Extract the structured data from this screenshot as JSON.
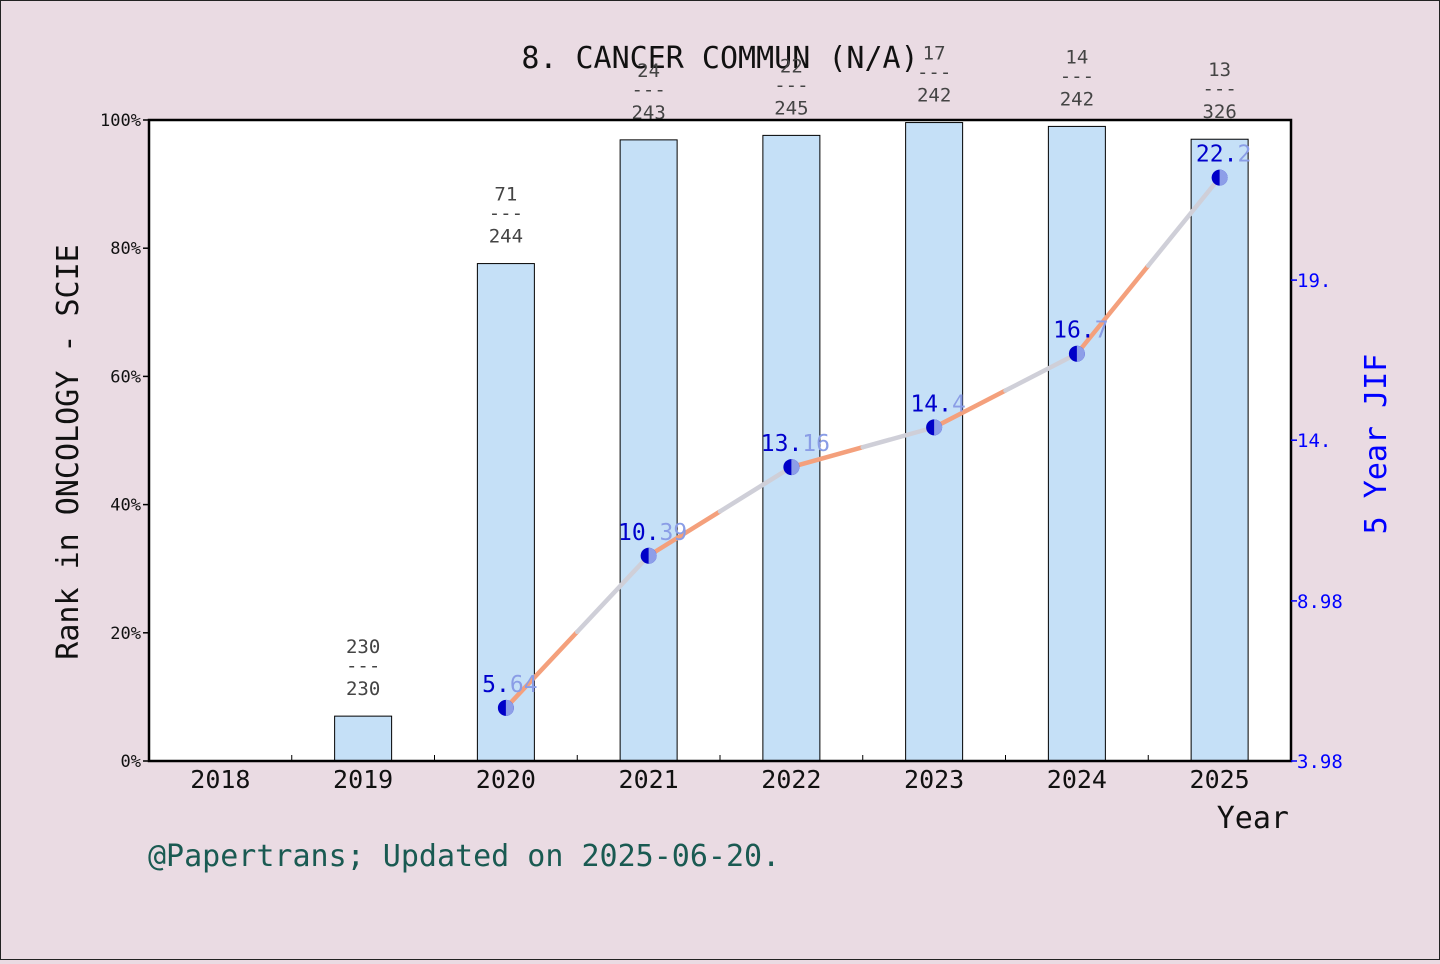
{
  "chart_data": {
    "type": "bar",
    "title": "8. CANCER COMMUN (N/A)",
    "xlabel": "Year",
    "ylabel": "Rank in ONCOLOGY - SCIE",
    "y2label": "5 Year JIF",
    "footer": "@Papertrans; Updated on 2025-06-20.",
    "categories": [
      "2018",
      "2019",
      "2020",
      "2021",
      "2022",
      "2023",
      "2024",
      "2025"
    ],
    "ylim": [
      0,
      100
    ],
    "yticks": [
      "0%",
      "20%",
      "40%",
      "60%",
      "80%",
      "100%"
    ],
    "y2lim": [
      3.98,
      24.0
    ],
    "y2ticks": [
      {
        "value": 3.98,
        "label": "3.98"
      },
      {
        "value": 8.98,
        "label": "8.98"
      },
      {
        "value": 14.0,
        "label": "14."
      },
      {
        "value": 19.0,
        "label": "19."
      }
    ],
    "series": [
      {
        "kind": "bar",
        "values": [
          null,
          7,
          77.6,
          96.9,
          97.6,
          99.6,
          99.0,
          97.0
        ],
        "rank_labels": [
          null,
          {
            "rank": "230",
            "sep": "---",
            "total": "230"
          },
          {
            "rank": "71",
            "sep": "---",
            "total": "244"
          },
          {
            "rank": "24",
            "sep": "---",
            "total": "243"
          },
          {
            "rank": "22",
            "sep": "---",
            "total": "245"
          },
          {
            "rank": "17",
            "sep": "---",
            "total": "242"
          },
          {
            "rank": "14",
            "sep": "---",
            "total": "242"
          },
          {
            "rank": "13",
            "sep": "---",
            "total": "326"
          }
        ],
        "color": "#c5e0f7"
      },
      {
        "kind": "line",
        "x": [
          "2020",
          "2021",
          "2022",
          "2023",
          "2024",
          "2025"
        ],
        "values": [
          5.64,
          10.39,
          13.16,
          14.4,
          16.7,
          22.2
        ],
        "labels": [
          {
            "a": "5.",
            "b": "64"
          },
          {
            "a": "10.",
            "b": "39"
          },
          {
            "a": "13.",
            "b": "16"
          },
          {
            "a": "14.",
            "b": "4"
          },
          {
            "a": "16.",
            "b": "7"
          },
          {
            "a": "22.",
            "b": "2"
          }
        ],
        "line_color": "#f4a07c",
        "marker_color": "#0000c8"
      }
    ],
    "grid": false
  }
}
